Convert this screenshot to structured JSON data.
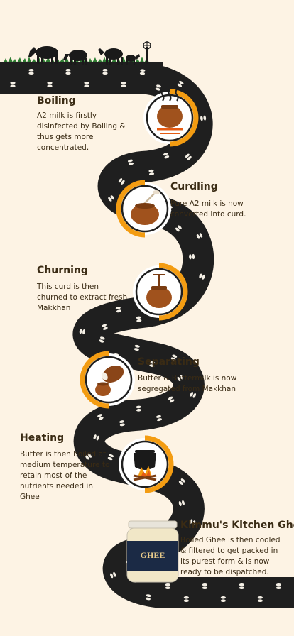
{
  "colors": {
    "background": "#fdf3e4",
    "road": "#1f1f1f",
    "accent": "#f39c12",
    "text": "#3a2b14",
    "pot": "#a0521d"
  },
  "steps": [
    {
      "title": "Boiling",
      "description": "A2 milk is firstly disinfected by Boiling & thus gets more concentrated.",
      "icon": "pot-on-fire-icon"
    },
    {
      "title": "Curdling",
      "description": "Pure A2 milk is now converted into curd.",
      "icon": "curd-pot-with-spoon-icon"
    },
    {
      "title": "Churning",
      "description": "This curd is then churned to extract fresh Makkhan",
      "icon": "churning-pot-icon"
    },
    {
      "title": "Separating",
      "description": "Butter & Buttermilk is now segregated from Makkhan",
      "icon": "separating-pots-icon"
    },
    {
      "title": "Heating",
      "description": "Butter is then boiled at medium temperature to retain most of the nutrients needed in Ghee",
      "icon": "cauldron-on-fire-icon"
    },
    {
      "title": "Kimmu's Kitchen Ghee",
      "description": "Boiled Ghee is then cooled & filtered to get packed in its purest form & is now ready to be dispatched.",
      "icon": "ghee-jar-icon"
    }
  ],
  "jar": {
    "label": "GHEE"
  }
}
